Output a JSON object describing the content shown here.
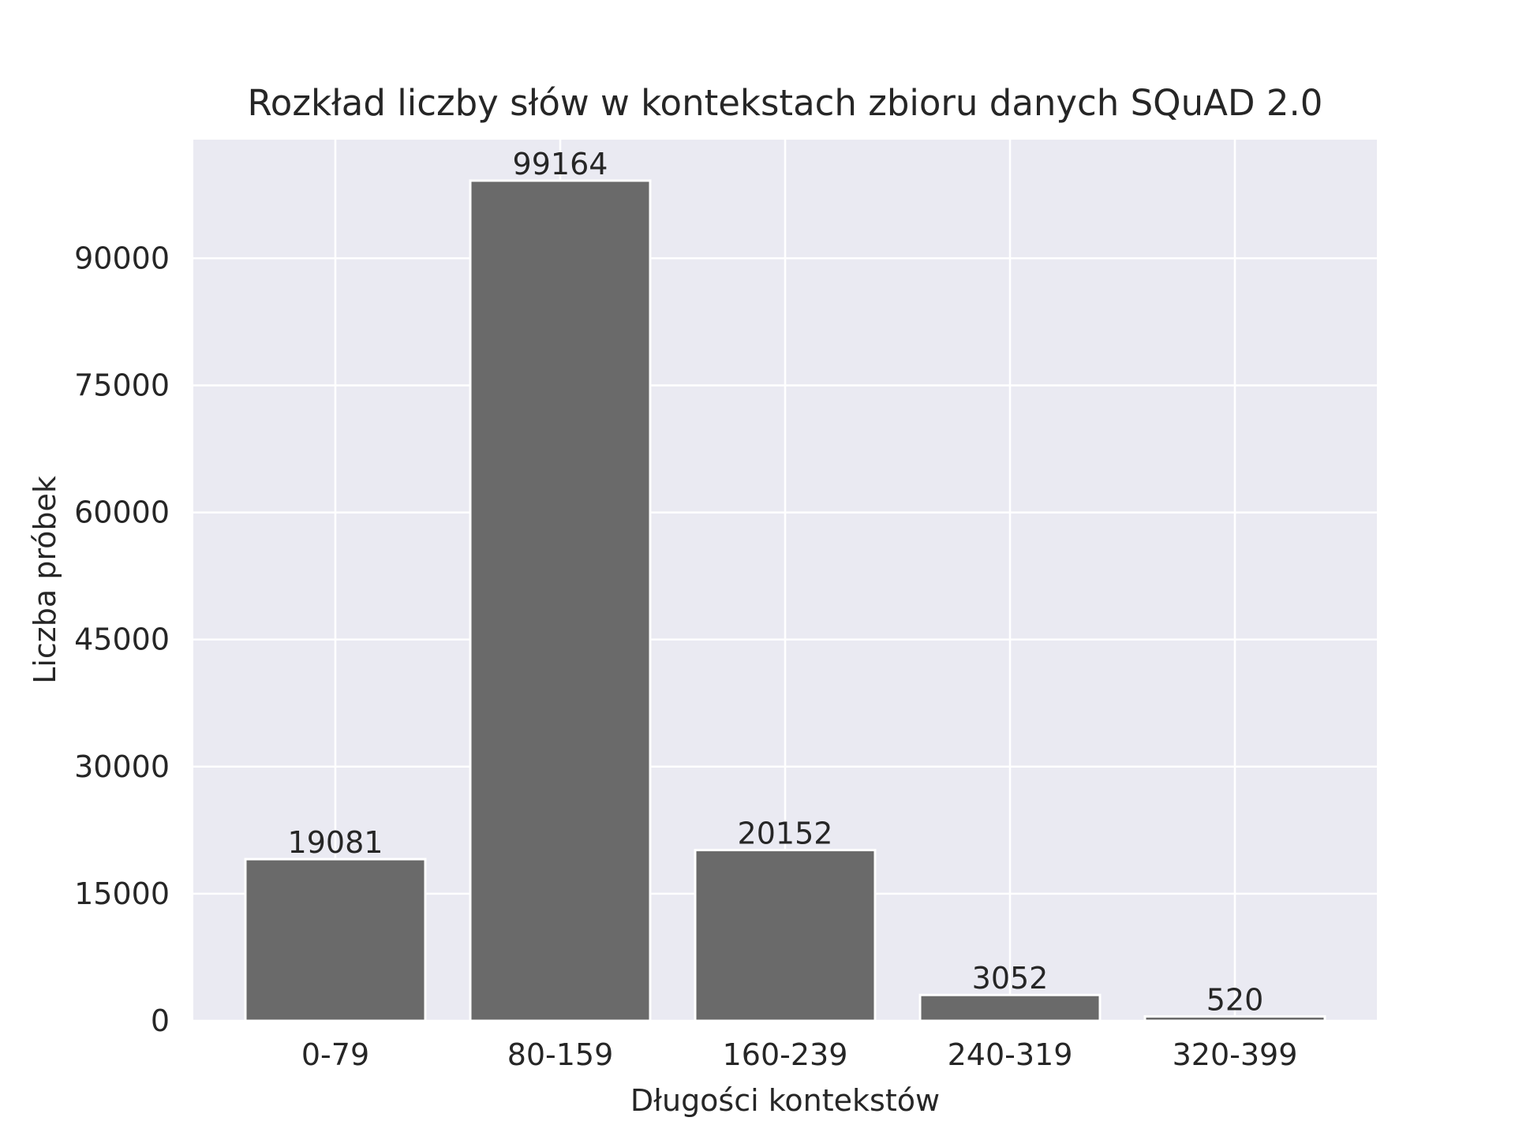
{
  "chart_data": {
    "type": "bar",
    "title": "Rozkład liczby słów w kontekstach zbioru danych SQuAD 2.0",
    "xlabel": "Długości kontekstów",
    "ylabel": "Liczba próbek",
    "categories": [
      "0-79",
      "80-159",
      "160-239",
      "240-319",
      "320-399"
    ],
    "values": [
      19081,
      99164,
      20152,
      3052,
      520
    ],
    "data_labels": [
      "19081",
      "99164",
      "20152",
      "3052",
      "520"
    ],
    "ylim": [
      0,
      104000
    ],
    "yticks": [
      0,
      15000,
      30000,
      45000,
      60000,
      75000,
      90000
    ],
    "ytick_labels": [
      "0",
      "15000",
      "30000",
      "45000",
      "60000",
      "75000",
      "90000"
    ],
    "grid": true,
    "colors": {
      "bar": "#6a6a6a",
      "plot_background": "#eaeaf2",
      "grid": "#ffffff",
      "text": "#262626"
    }
  }
}
